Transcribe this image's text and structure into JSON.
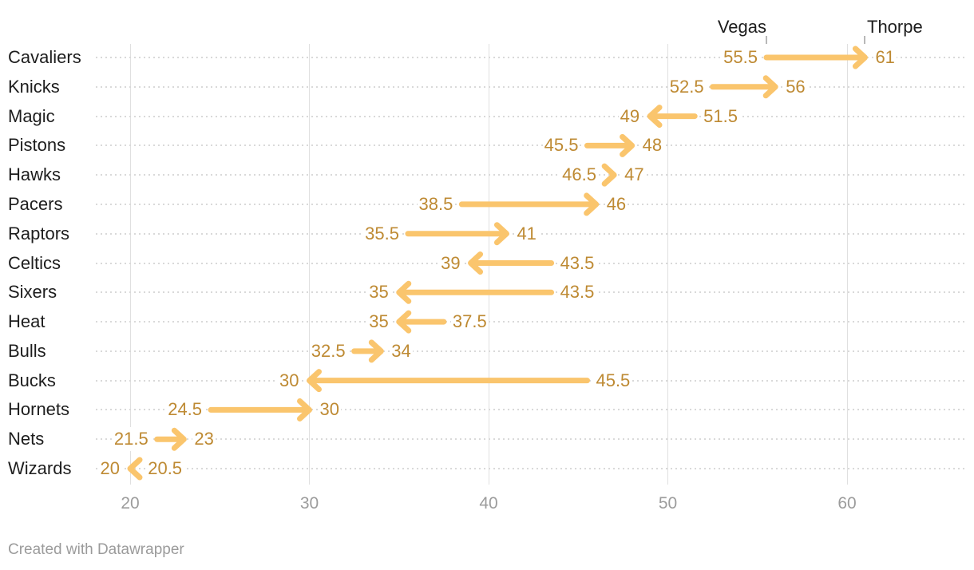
{
  "header": {
    "vegas_label": "Vegas",
    "thorpe_label": "Thorpe"
  },
  "footer": {
    "credit": "Created with Datawrapper"
  },
  "colors": {
    "arrow": "#fac56d",
    "value_label": "#be8a33",
    "team_label": "#1d1d1d",
    "axis_label": "#9c9c9c",
    "gridline": "#e0e0e0",
    "dotted_line": "#d9d9d9",
    "header_tick": "#b8b8b8",
    "footer_text": "#9b9b9b"
  },
  "chart_data": {
    "type": "arrow",
    "title": "",
    "xlabel": "",
    "ylabel": "",
    "x_axis": {
      "min": 20,
      "max": 60,
      "ticks": [
        20,
        30,
        40,
        50,
        60
      ],
      "grid": true
    },
    "series_labels": {
      "start": "Vegas",
      "end": "Thorpe"
    },
    "rows": [
      {
        "team": "Cavaliers",
        "vegas": 55.5,
        "thorpe": 61
      },
      {
        "team": "Knicks",
        "vegas": 52.5,
        "thorpe": 56
      },
      {
        "team": "Magic",
        "vegas": 51.5,
        "thorpe": 49
      },
      {
        "team": "Pistons",
        "vegas": 45.5,
        "thorpe": 48
      },
      {
        "team": "Hawks",
        "vegas": 46.5,
        "thorpe": 47
      },
      {
        "team": "Pacers",
        "vegas": 38.5,
        "thorpe": 46
      },
      {
        "team": "Raptors",
        "vegas": 35.5,
        "thorpe": 41
      },
      {
        "team": "Celtics",
        "vegas": 43.5,
        "thorpe": 39
      },
      {
        "team": "Sixers",
        "vegas": 43.5,
        "thorpe": 35
      },
      {
        "team": "Heat",
        "vegas": 37.5,
        "thorpe": 35
      },
      {
        "team": "Bulls",
        "vegas": 32.5,
        "thorpe": 34
      },
      {
        "team": "Bucks",
        "vegas": 45.5,
        "thorpe": 30
      },
      {
        "team": "Hornets",
        "vegas": 24.5,
        "thorpe": 30
      },
      {
        "team": "Nets",
        "vegas": 21.5,
        "thorpe": 23
      },
      {
        "team": "Wizards",
        "vegas": 20.5,
        "thorpe": 20
      }
    ]
  }
}
